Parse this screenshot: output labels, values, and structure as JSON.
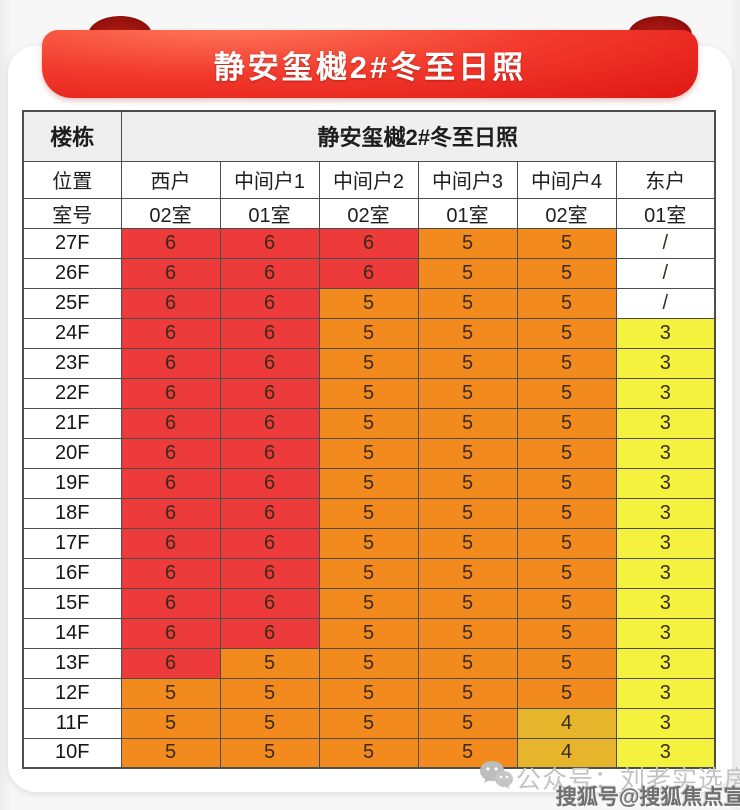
{
  "banner": {
    "title": "静安玺樾2#冬至日照"
  },
  "chart_data": {
    "type": "table",
    "title": "静安玺樾2#冬至日照",
    "corner_header": "楼栋",
    "position_label": "位置",
    "room_label": "室号",
    "positions": [
      "西户",
      "中间户1",
      "中间户2",
      "中间户3",
      "中间户4",
      "东户"
    ],
    "rooms": [
      "02室",
      "01室",
      "02室",
      "01室",
      "02室",
      "01室"
    ],
    "rows": [
      {
        "floor": "27F",
        "values": [
          "6",
          "6",
          "6",
          "5",
          "5",
          "/"
        ],
        "colors": [
          "red",
          "red",
          "red",
          "orange",
          "orange",
          "white"
        ]
      },
      {
        "floor": "26F",
        "values": [
          "6",
          "6",
          "6",
          "5",
          "5",
          "/"
        ],
        "colors": [
          "red",
          "red",
          "red",
          "orange",
          "orange",
          "white"
        ]
      },
      {
        "floor": "25F",
        "values": [
          "6",
          "6",
          "5",
          "5",
          "5",
          "/"
        ],
        "colors": [
          "red",
          "red",
          "orange",
          "orange",
          "orange",
          "white"
        ]
      },
      {
        "floor": "24F",
        "values": [
          "6",
          "6",
          "5",
          "5",
          "5",
          "3"
        ],
        "colors": [
          "red",
          "red",
          "orange",
          "orange",
          "orange",
          "yellow"
        ]
      },
      {
        "floor": "23F",
        "values": [
          "6",
          "6",
          "5",
          "5",
          "5",
          "3"
        ],
        "colors": [
          "red",
          "red",
          "orange",
          "orange",
          "orange",
          "yellow"
        ]
      },
      {
        "floor": "22F",
        "values": [
          "6",
          "6",
          "5",
          "5",
          "5",
          "3"
        ],
        "colors": [
          "red",
          "red",
          "orange",
          "orange",
          "orange",
          "yellow"
        ]
      },
      {
        "floor": "21F",
        "values": [
          "6",
          "6",
          "5",
          "5",
          "5",
          "3"
        ],
        "colors": [
          "red",
          "red",
          "orange",
          "orange",
          "orange",
          "yellow"
        ]
      },
      {
        "floor": "20F",
        "values": [
          "6",
          "6",
          "5",
          "5",
          "5",
          "3"
        ],
        "colors": [
          "red",
          "red",
          "orange",
          "orange",
          "orange",
          "yellow"
        ]
      },
      {
        "floor": "19F",
        "values": [
          "6",
          "6",
          "5",
          "5",
          "5",
          "3"
        ],
        "colors": [
          "red",
          "red",
          "orange",
          "orange",
          "orange",
          "yellow"
        ]
      },
      {
        "floor": "18F",
        "values": [
          "6",
          "6",
          "5",
          "5",
          "5",
          "3"
        ],
        "colors": [
          "red",
          "red",
          "orange",
          "orange",
          "orange",
          "yellow"
        ]
      },
      {
        "floor": "17F",
        "values": [
          "6",
          "6",
          "5",
          "5",
          "5",
          "3"
        ],
        "colors": [
          "red",
          "red",
          "orange",
          "orange",
          "orange",
          "yellow"
        ]
      },
      {
        "floor": "16F",
        "values": [
          "6",
          "6",
          "5",
          "5",
          "5",
          "3"
        ],
        "colors": [
          "red",
          "red",
          "orange",
          "orange",
          "orange",
          "yellow"
        ]
      },
      {
        "floor": "15F",
        "values": [
          "6",
          "6",
          "5",
          "5",
          "5",
          "3"
        ],
        "colors": [
          "red",
          "red",
          "orange",
          "orange",
          "orange",
          "yellow"
        ]
      },
      {
        "floor": "14F",
        "values": [
          "6",
          "6",
          "5",
          "5",
          "5",
          "3"
        ],
        "colors": [
          "red",
          "red",
          "orange",
          "orange",
          "orange",
          "yellow"
        ]
      },
      {
        "floor": "13F",
        "values": [
          "6",
          "5",
          "5",
          "5",
          "5",
          "3"
        ],
        "colors": [
          "red",
          "orange",
          "orange",
          "orange",
          "orange",
          "yellow"
        ]
      },
      {
        "floor": "12F",
        "values": [
          "5",
          "5",
          "5",
          "5",
          "5",
          "3"
        ],
        "colors": [
          "orange",
          "orange",
          "orange",
          "orange",
          "orange",
          "yellow"
        ]
      },
      {
        "floor": "11F",
        "values": [
          "5",
          "5",
          "5",
          "5",
          "4",
          "3"
        ],
        "colors": [
          "orange",
          "orange",
          "orange",
          "orange",
          "gold",
          "yellow"
        ]
      },
      {
        "floor": "10F",
        "values": [
          "5",
          "5",
          "5",
          "5",
          "4",
          "3"
        ],
        "colors": [
          "orange",
          "orange",
          "orange",
          "orange",
          "gold",
          "yellow"
        ]
      }
    ]
  },
  "colors": {
    "banner_red": "#EE2B26",
    "banner_curl_red": "#8C0F0C",
    "cell_red": "#ED3B3C",
    "cell_orange": "#F28A1E",
    "cell_gold": "#E7B52C",
    "cell_yellow": "#F4F13F",
    "cell_white": "#FFFFFF"
  },
  "watermarks": {
    "wechat_label": "公众号：刘老实选房",
    "sohu_label": "搜狐号@搜狐焦点宣城站"
  }
}
